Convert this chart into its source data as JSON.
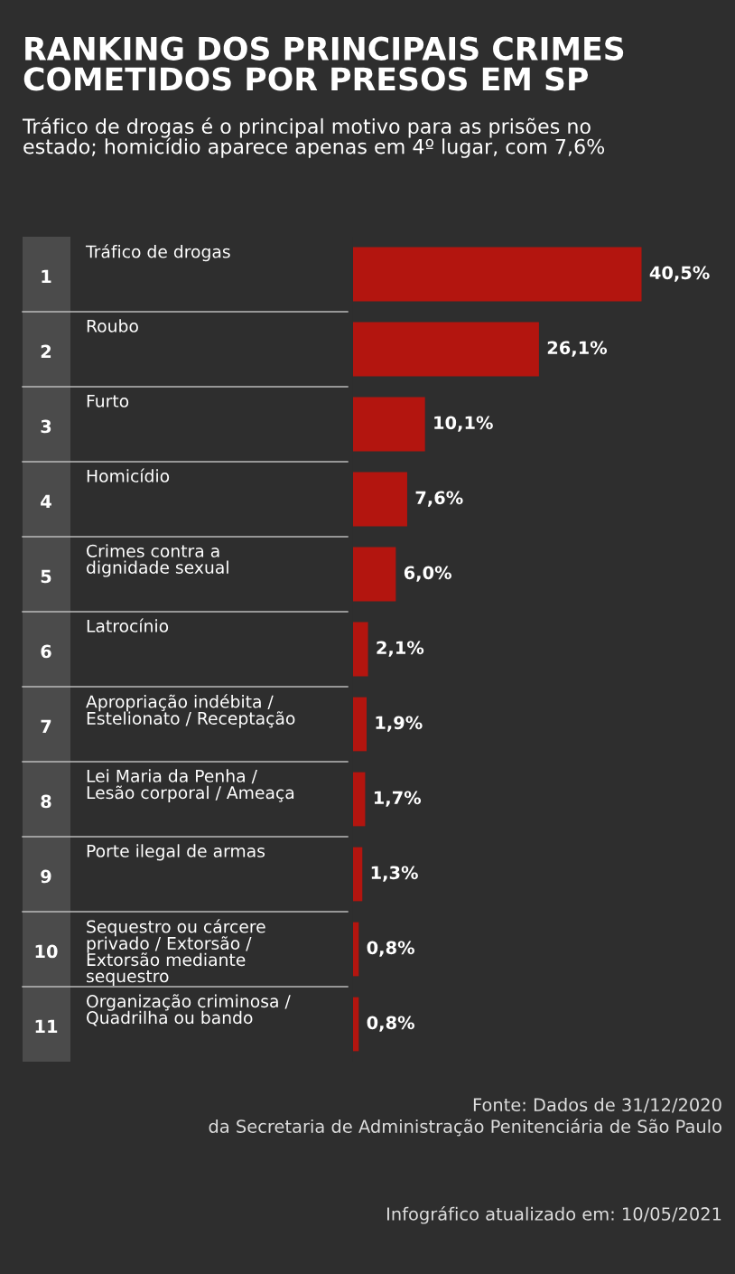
{
  "chart_data": {
    "type": "bar",
    "orientation": "horizontal",
    "title": "RANKING DOS PRINCIPAIS CRIMES\nCOMETIDOS POR PRESOS EM SP",
    "subtitle": "Tráfico de drogas é o principal motivo para as prisões no\nestado; homicídio aparece apenas em 4º lugar, com 7,6%",
    "categories": [
      "1 Tráfico de drogas",
      "2 Roubo",
      "3 Furto",
      "4 Homicídio",
      "5 Crimes contra a\ndignidade sexual",
      "6 Latrocínio",
      "7 Apropriação indébita /\nEstelionato / Receptação",
      "8 Lei Maria da Penha /\nLesão corporal / Ameaça",
      "9 Porte ilegal de armas",
      "10 Sequestro ou cárcere\nprivado / Extorsão /\nExtorsão mediante\nsequestro",
      "11 Organização criminosa /\nQuadrilha ou bando"
    ],
    "values": [
      40.5,
      26.1,
      10.1,
      7.6,
      6.0,
      2.1,
      1.9,
      1.7,
      1.3,
      0.8,
      0.8
    ],
    "value_labels": [
      "40,5%",
      "26,1%",
      "10,1%",
      "7,6%",
      "6,0%",
      "2,1%",
      "1,9%",
      "1,7%",
      "1,3%",
      "0,8%",
      "0,8%"
    ],
    "color": "#b3150f",
    "tick_labels": false,
    "annotations": [
      "Fonte: Dados de 31/12/2020\nda Secretaria de Administração Penitenciária de São Paulo",
      "Infográfico atualizado em: 10/05/2021"
    ]
  }
}
